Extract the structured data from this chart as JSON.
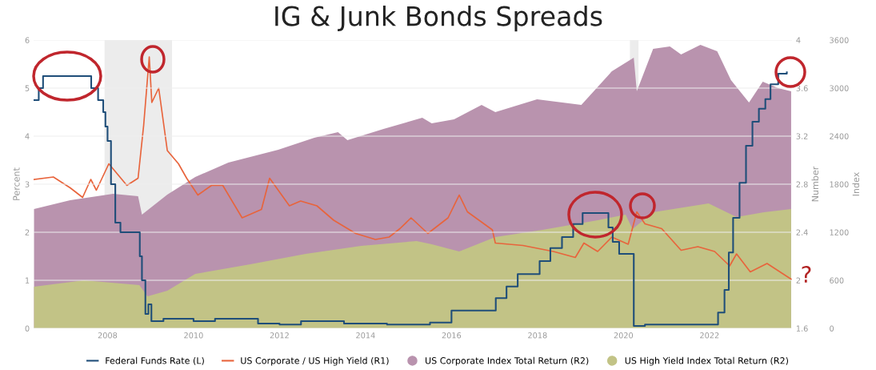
{
  "chart_data": {
    "type": "line",
    "title": "IG & Junk Bonds Spreads",
    "ylabel": "Percent",
    "y2label": "Number",
    "y3label": "Index",
    "xlim": [
      2006.28,
      2023.92
    ],
    "xticks": [
      2008,
      2010,
      2012,
      2014,
      2016,
      2018,
      2020,
      2022
    ],
    "ylim": [
      0,
      6
    ],
    "yticks": [
      0,
      1,
      2,
      3,
      4,
      5,
      6
    ],
    "y2lim": [
      1.6,
      4
    ],
    "y2ticks": [
      1.6,
      2,
      2.4,
      2.8,
      3.2,
      3.6,
      4
    ],
    "y3lim": [
      0,
      3600
    ],
    "y3ticks": [
      0,
      600,
      1200,
      1800,
      2400,
      3000,
      3600
    ],
    "grid": "y",
    "legend": "bottom",
    "bands": [
      {
        "axis": "x",
        "from": 2007.93,
        "to": 2009.5,
        "color": "#ececec"
      },
      {
        "axis": "x",
        "from": 2020.15,
        "to": 2020.35,
        "color": "#ececec"
      }
    ],
    "annotations": [
      "?"
    ],
    "series": [
      {
        "name": "US Corporate Index Total Return (R2)",
        "type": "area",
        "axis": "y3",
        "color": "#b993ae",
        "x": [
          2006.29,
          2007.13,
          2008.13,
          2008.71,
          2008.8,
          2009.39,
          2010.04,
          2010.81,
          2011.97,
          2012.81,
          2013.36,
          2013.58,
          2014.42,
          2015.32,
          2015.54,
          2016.06,
          2016.7,
          2017.02,
          2017.99,
          2019.02,
          2019.73,
          2020.24,
          2020.31,
          2020.69,
          2021.08,
          2021.34,
          2021.79,
          2022.18,
          2022.5,
          2022.92,
          2023.24,
          2023.6,
          2023.9
        ],
        "values": [
          1490,
          1600,
          1680,
          1650,
          1420,
          1670,
          1890,
          2070,
          2230,
          2380,
          2450,
          2350,
          2490,
          2630,
          2560,
          2610,
          2790,
          2700,
          2860,
          2790,
          3210,
          3380,
          2960,
          3490,
          3520,
          3420,
          3540,
          3460,
          3100,
          2820,
          3080,
          3000,
          2960
        ]
      },
      {
        "name": "US High Yield Index Total Return (R2)",
        "type": "area",
        "axis": "y3",
        "color": "#c2c386",
        "x": [
          2006.29,
          2007.45,
          2008.74,
          2008.93,
          2009.39,
          2010.04,
          2011.32,
          2012.61,
          2013.9,
          2015.19,
          2015.54,
          2016.18,
          2017.02,
          2018.12,
          2019.4,
          2020.05,
          2020.21,
          2020.69,
          2021.98,
          2022.63,
          2023.27,
          2023.9
        ],
        "values": [
          520,
          600,
          540,
          400,
          470,
          680,
          800,
          930,
          1030,
          1090,
          1050,
          960,
          1140,
          1230,
          1350,
          1420,
          1240,
          1450,
          1560,
          1390,
          1450,
          1490
        ]
      },
      {
        "name": "US Corporate / US High Yield (R1)",
        "axis": "y2",
        "color": "#e8643c",
        "x": [
          2006.29,
          2006.74,
          2007.13,
          2007.42,
          2007.61,
          2007.74,
          2008.03,
          2008.45,
          2008.71,
          2008.84,
          2008.97,
          2009.03,
          2009.19,
          2009.39,
          2009.65,
          2009.84,
          2010.1,
          2010.42,
          2010.68,
          2011.13,
          2011.58,
          2011.77,
          2012.23,
          2012.49,
          2012.87,
          2013.26,
          2013.77,
          2014.23,
          2014.55,
          2014.8,
          2015.06,
          2015.45,
          2015.92,
          2016.18,
          2016.37,
          2016.95,
          2017.02,
          2017.66,
          2018.37,
          2018.88,
          2019.08,
          2019.4,
          2019.73,
          2020.11,
          2020.31,
          2020.5,
          2020.89,
          2021.34,
          2021.73,
          2022.12,
          2022.47,
          2022.63,
          2022.95,
          2023.34,
          2023.9
        ],
        "values": [
          2.84,
          2.86,
          2.77,
          2.69,
          2.84,
          2.75,
          2.97,
          2.79,
          2.85,
          3.29,
          3.86,
          3.48,
          3.6,
          3.08,
          2.97,
          2.85,
          2.71,
          2.79,
          2.79,
          2.52,
          2.59,
          2.85,
          2.62,
          2.66,
          2.62,
          2.5,
          2.39,
          2.34,
          2.36,
          2.43,
          2.52,
          2.39,
          2.52,
          2.71,
          2.57,
          2.42,
          2.31,
          2.29,
          2.24,
          2.19,
          2.31,
          2.24,
          2.36,
          2.3,
          2.57,
          2.47,
          2.43,
          2.25,
          2.28,
          2.24,
          2.12,
          2.22,
          2.07,
          2.14,
          2.01
        ]
      },
      {
        "name": "Federal Funds Rate (L)",
        "type": "step",
        "axis": "y",
        "color": "#1f4e79",
        "x": [
          2006.3,
          2006.4,
          2006.5,
          2007.62,
          2007.78,
          2007.9,
          2007.95,
          2008.0,
          2008.08,
          2008.18,
          2008.3,
          2008.75,
          2008.8,
          2008.88,
          2008.95,
          2009.02,
          2009.3,
          2010.0,
          2010.5,
          2011.5,
          2012.0,
          2012.5,
          2013.5,
          2014.5,
          2015.5,
          2016.0,
          2017.03,
          2017.28,
          2017.54,
          2018.05,
          2018.3,
          2018.57,
          2018.83,
          2019.05,
          2019.65,
          2019.75,
          2019.9,
          2020.24,
          2020.5,
          2022.2,
          2022.35,
          2022.45,
          2022.55,
          2022.7,
          2022.85,
          2023.0,
          2023.15,
          2023.3,
          2023.42,
          2023.6,
          2023.8
        ],
        "values": [
          4.75,
          5.0,
          5.25,
          5.0,
          4.75,
          4.5,
          4.2,
          3.9,
          3.0,
          2.2,
          2.0,
          1.5,
          1.0,
          0.3,
          0.5,
          0.15,
          0.2,
          0.15,
          0.2,
          0.1,
          0.08,
          0.15,
          0.1,
          0.08,
          0.12,
          0.37,
          0.63,
          0.87,
          1.13,
          1.4,
          1.67,
          1.9,
          2.17,
          2.4,
          2.1,
          1.8,
          1.55,
          0.05,
          0.08,
          0.33,
          0.8,
          1.58,
          2.3,
          3.03,
          3.8,
          4.3,
          4.57,
          4.77,
          5.08,
          5.3,
          5.33
        ]
      }
    ]
  }
}
